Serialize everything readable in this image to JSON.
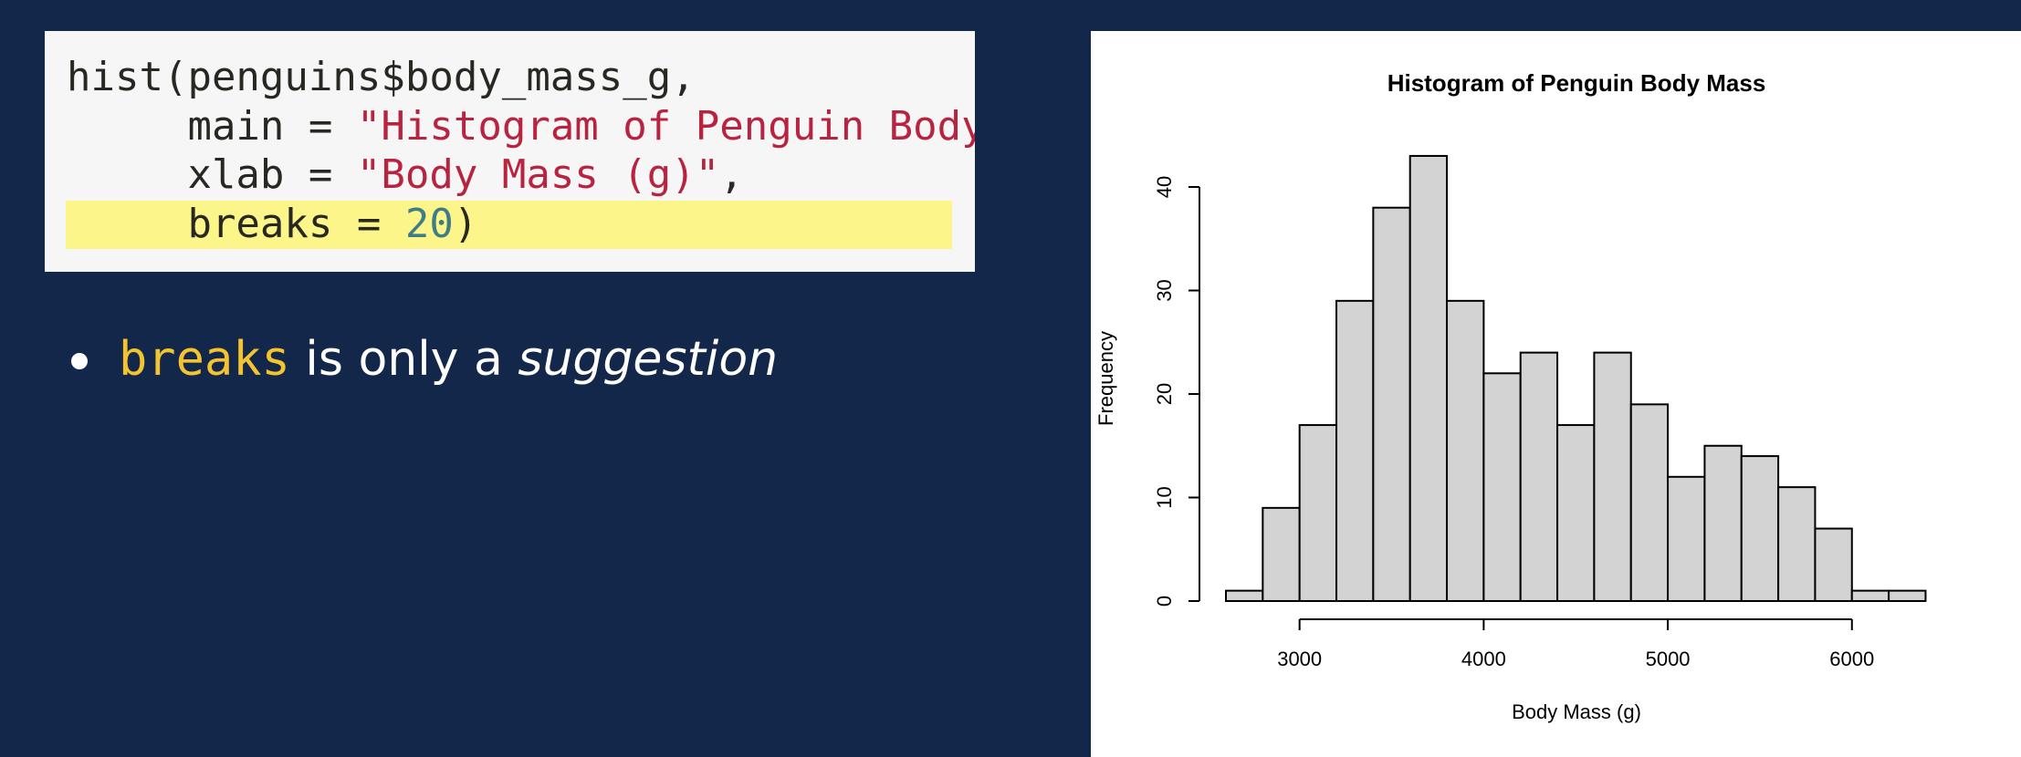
{
  "code": {
    "lines": [
      [
        {
          "t": "hist(penguins$body_mass_g,",
          "k": "plain"
        }
      ],
      [
        {
          "t": "     main = ",
          "k": "plain"
        },
        {
          "t": "\"Histogram of Penguin Body Mass\",",
          "k": "str"
        }
      ],
      [
        {
          "t": "     xlab = ",
          "k": "plain"
        },
        {
          "t": "\"Body Mass (g)\"",
          "k": "str"
        },
        {
          "t": ",",
          "k": "plain"
        }
      ],
      [
        {
          "t": "     breaks = ",
          "k": "plain"
        },
        {
          "t": "20",
          "k": "num"
        },
        {
          "t": ")",
          "k": "plain"
        }
      ]
    ],
    "highlighted_line": 3
  },
  "bullet": {
    "keyword": "breaks",
    "middle": " is only a ",
    "emphasis": "suggestion"
  },
  "colors": {
    "background": "#13274a",
    "keyword": "#f4c430",
    "highlight": "#fcf58a",
    "string": "#b82440",
    "number": "#3e7c86",
    "bar_fill": "#d3d3d3"
  },
  "chart_data": {
    "type": "bar",
    "title": "Histogram of Penguin Body Mass",
    "xlabel": "Body Mass (g)",
    "ylabel": "Frequency",
    "bin_edges": [
      2600,
      2800,
      3000,
      3200,
      3400,
      3600,
      3800,
      4000,
      4200,
      4400,
      4600,
      4800,
      5000,
      5200,
      5400,
      5600,
      5800,
      6000,
      6200,
      6400
    ],
    "values": [
      1,
      9,
      17,
      29,
      38,
      43,
      29,
      22,
      24,
      17,
      24,
      19,
      12,
      15,
      14,
      11,
      7,
      1,
      1
    ],
    "x_ticks": [
      3000,
      4000,
      5000,
      6000
    ],
    "y_ticks": [
      0,
      10,
      20,
      30,
      40
    ],
    "xlim": [
      2600,
      6400
    ],
    "ylim": [
      0,
      43
    ],
    "grid": false
  }
}
